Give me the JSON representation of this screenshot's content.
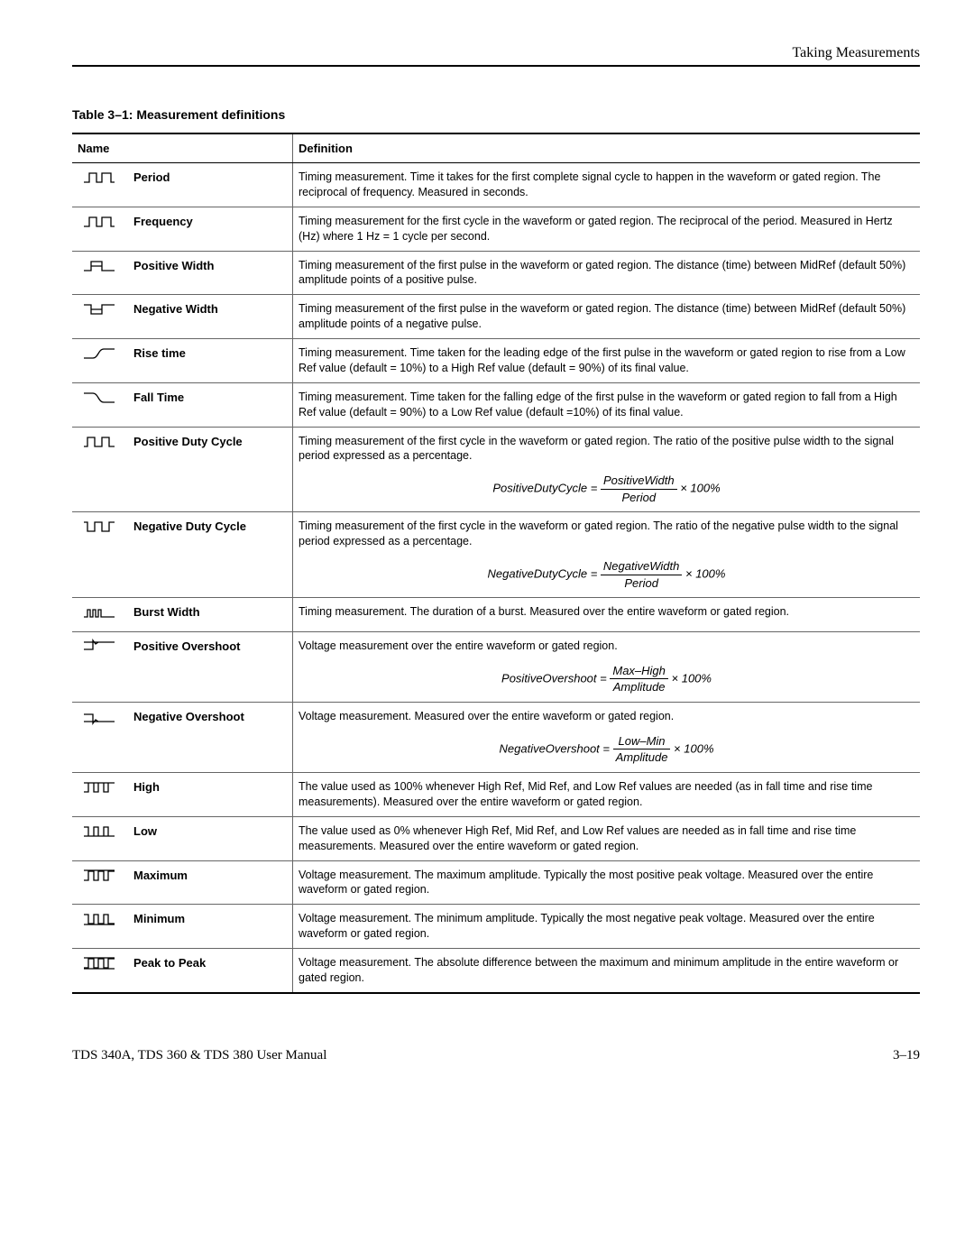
{
  "header": "Taking Measurements",
  "table_title": "Table 3–1: Measurement definitions",
  "columns": {
    "name": "Name",
    "definition": "Definition"
  },
  "rows": [
    {
      "icon": "period",
      "name": "Period",
      "def": "Timing measurement. Time it takes for the first complete signal cycle to happen in the waveform or gated region. The reciprocal of frequency. Measured in seconds."
    },
    {
      "icon": "frequency",
      "name": "Frequency",
      "def": "Timing measurement for the first cycle in the waveform or gated region. The reciprocal of the period. Measured in Hertz (Hz) where 1 Hz = 1 cycle per second."
    },
    {
      "icon": "positive-width",
      "name": "Positive Width",
      "def": "Timing measurement of the first pulse in the waveform or gated region. The distance (time) between MidRef (default 50%) amplitude points of a positive pulse."
    },
    {
      "icon": "negative-width",
      "name": "Negative Width",
      "def": "Timing measurement of the first pulse in the waveform or gated region. The distance (time) between MidRef (default 50%) amplitude points of a negative pulse."
    },
    {
      "icon": "rise-time",
      "name": "Rise time",
      "def": "Timing measurement. Time taken for the leading edge of the first pulse in the waveform or gated region to rise from a Low Ref value (default = 10%) to a High Ref value (default = 90%) of its final value."
    },
    {
      "icon": "fall-time",
      "name": "Fall Time",
      "def": "Timing measurement. Time taken for the falling edge of the first pulse in the waveform or gated region to fall from a High Ref value (default = 90%) to a Low Ref value (default =10%) of its final value."
    },
    {
      "icon": "positive-duty",
      "name": "Positive Duty Cycle",
      "def": "Timing measurement of the first cycle in the waveform or gated region. The ratio of the positive pulse width to the signal period expressed as a percentage.",
      "formula_lhs": "PositiveDutyCycle =",
      "formula_num": "PositiveWidth",
      "formula_den": "Period",
      "formula_rhs": "× 100%"
    },
    {
      "icon": "negative-duty",
      "name": "Negative Duty Cycle",
      "def": "Timing measurement of the first cycle in the waveform or gated region. The ratio of the negative pulse width to the signal period expressed as a percentage.",
      "formula_lhs": "NegativeDutyCycle =",
      "formula_num": "NegativeWidth",
      "formula_den": "Period",
      "formula_rhs": "× 100%"
    },
    {
      "icon": "burst-width",
      "name": "Burst Width",
      "def": "Timing measurement. The duration of a burst. Measured over the entire waveform or gated region."
    },
    {
      "icon": "positive-overshoot",
      "name": "Positive Overshoot",
      "def": "Voltage measurement over the entire waveform or gated region.",
      "formula_lhs": "PositiveOvershoot =",
      "formula_num": "Max–High",
      "formula_den": "Amplitude",
      "formula_rhs": "× 100%"
    },
    {
      "icon": "negative-overshoot",
      "name": "Negative Overshoot",
      "def": "Voltage measurement. Measured over the entire waveform or gated region.",
      "formula_lhs": "NegativeOvershoot =",
      "formula_num": "Low–Min",
      "formula_den": "Amplitude",
      "formula_rhs": "× 100%"
    },
    {
      "icon": "high",
      "name": "High",
      "def": "The value used as 100% whenever High Ref, Mid Ref, and Low Ref values are needed (as in fall time and rise time measurements). Measured over the entire waveform or gated region."
    },
    {
      "icon": "low",
      "name": "Low",
      "def": "The value used as 0% whenever High Ref, Mid Ref, and Low Ref values are needed as in fall time and rise time measurements. Measured over the entire waveform or gated region."
    },
    {
      "icon": "maximum",
      "name": "Maximum",
      "def": "Voltage measurement. The maximum amplitude. Typically the most positive peak voltage. Measured over the entire waveform or gated region."
    },
    {
      "icon": "minimum",
      "name": "Minimum",
      "def": "Voltage measurement. The minimum amplitude. Typically the most negative peak voltage. Measured over the entire waveform or gated region."
    },
    {
      "icon": "peak-to-peak",
      "name": "Peak to Peak",
      "def": "Voltage measurement. The absolute difference between the maximum and minimum amplitude in the entire waveform or gated region."
    }
  ],
  "footer": {
    "left": "TDS 340A, TDS 360 & TDS 380 User Manual",
    "right": "3–19"
  }
}
